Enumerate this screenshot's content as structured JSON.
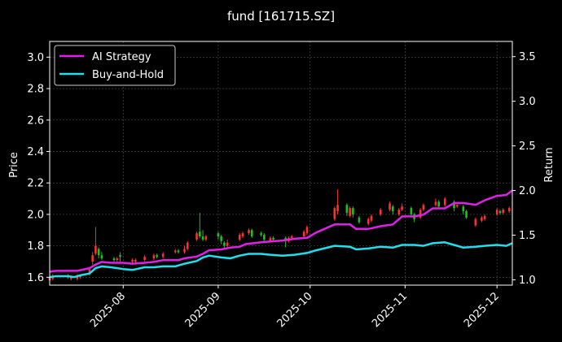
{
  "chart_data": {
    "type": "line",
    "title": "fund [161715.SZ]",
    "xlabel": "",
    "ylabel": "Price",
    "ylabel_right": "Return",
    "ylim": [
      1.55,
      3.1
    ],
    "ylim_right": [
      0.94,
      3.67
    ],
    "xlim": [
      "2025-07-08",
      "2025-12-06"
    ],
    "yticks": [
      1.6,
      1.8,
      2.0,
      2.2,
      2.4,
      2.6,
      2.8,
      3.0
    ],
    "ytick_labels": [
      "1.6",
      "1.8",
      "2.0",
      "2.2",
      "2.4",
      "2.6",
      "2.8",
      "3.0"
    ],
    "yticks_right": [
      1.0,
      1.5,
      2.0,
      2.5,
      3.0,
      3.5
    ],
    "ytick_labels_right": [
      "1.0",
      "1.5",
      "2.0",
      "2.5",
      "3.0",
      "3.5"
    ],
    "xticks": [
      "2025-08-01",
      "2025-09-01",
      "2025-10-01",
      "2025-11-01",
      "2025-12-01"
    ],
    "xtick_labels": [
      "2025-08",
      "2025-09",
      "2025-10",
      "2025-11",
      "2025-12"
    ],
    "grid": true,
    "legend_position": "top-left",
    "series": [
      {
        "name": "AI Strategy",
        "color": "#e020e8",
        "axis": "right",
        "points": [
          [
            "2025-07-08",
            1.09
          ],
          [
            "2025-07-10",
            1.1
          ],
          [
            "2025-07-14",
            1.1
          ],
          [
            "2025-07-17",
            1.1
          ],
          [
            "2025-07-21",
            1.13
          ],
          [
            "2025-07-23",
            1.17
          ],
          [
            "2025-07-25",
            1.2
          ],
          [
            "2025-07-28",
            1.19
          ],
          [
            "2025-08-01",
            1.19
          ],
          [
            "2025-08-04",
            1.18
          ],
          [
            "2025-08-08",
            1.19
          ],
          [
            "2025-08-11",
            1.2
          ],
          [
            "2025-08-14",
            1.22
          ],
          [
            "2025-08-19",
            1.22
          ],
          [
            "2025-08-21",
            1.24
          ],
          [
            "2025-08-25",
            1.26
          ],
          [
            "2025-08-27",
            1.29
          ],
          [
            "2025-08-29",
            1.33
          ],
          [
            "2025-09-02",
            1.34
          ],
          [
            "2025-09-05",
            1.36
          ],
          [
            "2025-09-08",
            1.37
          ],
          [
            "2025-09-10",
            1.4
          ],
          [
            "2025-09-15",
            1.42
          ],
          [
            "2025-09-18",
            1.43
          ],
          [
            "2025-09-22",
            1.44
          ],
          [
            "2025-09-26",
            1.46
          ],
          [
            "2025-09-30",
            1.47
          ],
          [
            "2025-10-03",
            1.53
          ],
          [
            "2025-10-09",
            1.62
          ],
          [
            "2025-10-14",
            1.62
          ],
          [
            "2025-10-16",
            1.57
          ],
          [
            "2025-10-20",
            1.57
          ],
          [
            "2025-10-24",
            1.6
          ],
          [
            "2025-10-28",
            1.62
          ],
          [
            "2025-10-31",
            1.71
          ],
          [
            "2025-11-04",
            1.71
          ],
          [
            "2025-11-07",
            1.73
          ],
          [
            "2025-11-10",
            1.8
          ],
          [
            "2025-11-14",
            1.8
          ],
          [
            "2025-11-17",
            1.86
          ],
          [
            "2025-11-20",
            1.86
          ],
          [
            "2025-11-24",
            1.84
          ],
          [
            "2025-11-27",
            1.89
          ],
          [
            "2025-12-01",
            1.94
          ],
          [
            "2025-12-04",
            1.95
          ],
          [
            "2025-12-06",
            2.0
          ]
        ]
      },
      {
        "name": "Buy-and-Hold",
        "color": "#20e0f0",
        "axis": "right",
        "points": [
          [
            "2025-07-08",
            1.03
          ],
          [
            "2025-07-10",
            1.04
          ],
          [
            "2025-07-14",
            1.04
          ],
          [
            "2025-07-16",
            1.03
          ],
          [
            "2025-07-18",
            1.05
          ],
          [
            "2025-07-21",
            1.07
          ],
          [
            "2025-07-23",
            1.13
          ],
          [
            "2025-07-25",
            1.15
          ],
          [
            "2025-07-28",
            1.14
          ],
          [
            "2025-08-01",
            1.12
          ],
          [
            "2025-08-04",
            1.11
          ],
          [
            "2025-08-08",
            1.14
          ],
          [
            "2025-08-11",
            1.14
          ],
          [
            "2025-08-14",
            1.15
          ],
          [
            "2025-08-18",
            1.15
          ],
          [
            "2025-08-21",
            1.18
          ],
          [
            "2025-08-25",
            1.21
          ],
          [
            "2025-08-27",
            1.25
          ],
          [
            "2025-08-29",
            1.27
          ],
          [
            "2025-09-02",
            1.25
          ],
          [
            "2025-09-05",
            1.24
          ],
          [
            "2025-09-08",
            1.27
          ],
          [
            "2025-09-11",
            1.29
          ],
          [
            "2025-09-15",
            1.29
          ],
          [
            "2025-09-18",
            1.28
          ],
          [
            "2025-09-22",
            1.27
          ],
          [
            "2025-09-26",
            1.28
          ],
          [
            "2025-09-30",
            1.3
          ],
          [
            "2025-10-03",
            1.33
          ],
          [
            "2025-10-09",
            1.38
          ],
          [
            "2025-10-14",
            1.37
          ],
          [
            "2025-10-16",
            1.34
          ],
          [
            "2025-10-20",
            1.35
          ],
          [
            "2025-10-24",
            1.37
          ],
          [
            "2025-10-28",
            1.36
          ],
          [
            "2025-10-31",
            1.39
          ],
          [
            "2025-11-04",
            1.39
          ],
          [
            "2025-11-07",
            1.38
          ],
          [
            "2025-11-10",
            1.41
          ],
          [
            "2025-11-14",
            1.42
          ],
          [
            "2025-11-17",
            1.39
          ],
          [
            "2025-11-20",
            1.36
          ],
          [
            "2025-11-24",
            1.37
          ],
          [
            "2025-11-27",
            1.38
          ],
          [
            "2025-12-01",
            1.39
          ],
          [
            "2025-12-04",
            1.38
          ],
          [
            "2025-12-06",
            1.41
          ]
        ]
      }
    ],
    "candles": {
      "up_color": "#ff3030",
      "down_color": "#20c020",
      "data": [
        [
          "2025-07-08",
          1.58,
          1.6,
          1.56,
          1.61,
          "up"
        ],
        [
          "2025-07-09",
          1.59,
          1.61,
          1.58,
          1.62,
          "up"
        ],
        [
          "2025-07-14",
          1.61,
          1.6,
          1.59,
          1.62,
          "down"
        ],
        [
          "2025-07-15",
          1.59,
          1.6,
          1.58,
          1.61,
          "up"
        ],
        [
          "2025-07-17",
          1.59,
          1.61,
          1.58,
          1.62,
          "up"
        ],
        [
          "2025-07-18",
          1.6,
          1.61,
          1.59,
          1.62,
          "up"
        ],
        [
          "2025-07-21",
          1.62,
          1.65,
          1.61,
          1.66,
          "up"
        ],
        [
          "2025-07-22",
          1.7,
          1.74,
          1.68,
          1.76,
          "up"
        ],
        [
          "2025-07-23",
          1.75,
          1.8,
          1.74,
          1.92,
          "up"
        ],
        [
          "2025-07-24",
          1.78,
          1.74,
          1.72,
          1.79,
          "down"
        ],
        [
          "2025-07-25",
          1.74,
          1.72,
          1.71,
          1.76,
          "down"
        ],
        [
          "2025-07-29",
          1.72,
          1.71,
          1.7,
          1.73,
          "down"
        ],
        [
          "2025-07-30",
          1.71,
          1.72,
          1.7,
          1.73,
          "up"
        ],
        [
          "2025-07-31",
          1.74,
          1.73,
          1.7,
          1.76,
          "down"
        ],
        [
          "2025-08-04",
          1.7,
          1.71,
          1.69,
          1.72,
          "up"
        ],
        [
          "2025-08-05",
          1.7,
          1.71,
          1.69,
          1.72,
          "up"
        ],
        [
          "2025-08-08",
          1.71,
          1.73,
          1.7,
          1.74,
          "up"
        ],
        [
          "2025-08-11",
          1.72,
          1.74,
          1.71,
          1.75,
          "up"
        ],
        [
          "2025-08-12",
          1.74,
          1.73,
          1.72,
          1.75,
          "down"
        ],
        [
          "2025-08-14",
          1.73,
          1.75,
          1.72,
          1.76,
          "up"
        ],
        [
          "2025-08-18",
          1.76,
          1.77,
          1.75,
          1.78,
          "up"
        ],
        [
          "2025-08-19",
          1.77,
          1.76,
          1.75,
          1.78,
          "down"
        ],
        [
          "2025-08-21",
          1.76,
          1.78,
          1.75,
          1.8,
          "up"
        ],
        [
          "2025-08-22",
          1.78,
          1.82,
          1.77,
          1.83,
          "up"
        ],
        [
          "2025-08-25",
          1.84,
          1.88,
          1.83,
          1.89,
          "up"
        ],
        [
          "2025-08-26",
          1.89,
          1.86,
          1.85,
          2.01,
          "down"
        ],
        [
          "2025-08-27",
          1.86,
          1.84,
          1.83,
          1.9,
          "down"
        ],
        [
          "2025-08-28",
          1.84,
          1.86,
          1.83,
          1.87,
          "up"
        ],
        [
          "2025-09-01",
          1.88,
          1.86,
          1.84,
          1.89,
          "down"
        ],
        [
          "2025-09-02",
          1.86,
          1.83,
          1.81,
          1.87,
          "down"
        ],
        [
          "2025-09-03",
          1.82,
          1.8,
          1.78,
          1.83,
          "down"
        ],
        [
          "2025-09-04",
          1.8,
          1.82,
          1.79,
          1.84,
          "up"
        ],
        [
          "2025-09-08",
          1.84,
          1.87,
          1.83,
          1.88,
          "up"
        ],
        [
          "2025-09-09",
          1.86,
          1.88,
          1.85,
          1.89,
          "up"
        ],
        [
          "2025-09-11",
          1.88,
          1.9,
          1.87,
          1.91,
          "up"
        ],
        [
          "2025-09-12",
          1.9,
          1.86,
          1.85,
          1.91,
          "down"
        ],
        [
          "2025-09-15",
          1.88,
          1.87,
          1.86,
          1.89,
          "down"
        ],
        [
          "2025-09-16",
          1.87,
          1.84,
          1.83,
          1.88,
          "down"
        ],
        [
          "2025-09-18",
          1.83,
          1.85,
          1.82,
          1.86,
          "up"
        ],
        [
          "2025-09-19",
          1.85,
          1.84,
          1.83,
          1.86,
          "down"
        ],
        [
          "2025-09-23",
          1.85,
          1.83,
          1.79,
          1.86,
          "down"
        ],
        [
          "2025-09-24",
          1.83,
          1.85,
          1.82,
          1.86,
          "up"
        ],
        [
          "2025-09-25",
          1.85,
          1.86,
          1.84,
          1.87,
          "up"
        ],
        [
          "2025-09-29",
          1.86,
          1.89,
          1.85,
          1.9,
          "up"
        ],
        [
          "2025-09-30",
          1.88,
          1.92,
          1.87,
          1.93,
          "up"
        ],
        [
          "2025-10-09",
          1.97,
          2.04,
          1.96,
          2.05,
          "up"
        ],
        [
          "2025-10-10",
          2.02,
          2.06,
          2.0,
          2.16,
          "up"
        ],
        [
          "2025-10-13",
          2.06,
          2.01,
          1.99,
          2.07,
          "down"
        ],
        [
          "2025-10-14",
          1.99,
          2.04,
          1.98,
          2.05,
          "up"
        ],
        [
          "2025-10-15",
          2.04,
          2.0,
          1.98,
          2.05,
          "down"
        ],
        [
          "2025-10-17",
          1.98,
          1.95,
          1.94,
          1.99,
          "down"
        ],
        [
          "2025-10-20",
          1.94,
          1.97,
          1.93,
          1.98,
          "up"
        ],
        [
          "2025-10-21",
          1.96,
          1.99,
          1.95,
          2.0,
          "up"
        ],
        [
          "2025-10-24",
          2.0,
          2.03,
          1.99,
          2.04,
          "up"
        ],
        [
          "2025-10-27",
          2.03,
          2.07,
          2.02,
          2.08,
          "up"
        ],
        [
          "2025-10-28",
          2.05,
          2.02,
          2.0,
          2.06,
          "down"
        ],
        [
          "2025-10-30",
          2.0,
          2.03,
          1.99,
          2.04,
          "up"
        ],
        [
          "2025-10-31",
          2.03,
          2.05,
          2.02,
          2.07,
          "up"
        ],
        [
          "2025-11-03",
          2.04,
          2.0,
          1.98,
          2.05,
          "down"
        ],
        [
          "2025-11-04",
          2.0,
          1.97,
          1.95,
          2.01,
          "down"
        ],
        [
          "2025-11-06",
          1.98,
          2.03,
          1.97,
          2.04,
          "up"
        ],
        [
          "2025-11-07",
          2.03,
          2.06,
          2.02,
          2.07,
          "up"
        ],
        [
          "2025-11-11",
          2.06,
          2.08,
          2.05,
          2.1,
          "up"
        ],
        [
          "2025-11-12",
          2.08,
          2.05,
          2.04,
          2.09,
          "down"
        ],
        [
          "2025-11-14",
          2.06,
          2.1,
          2.05,
          2.11,
          "up"
        ],
        [
          "2025-11-17",
          2.08,
          2.04,
          2.02,
          2.09,
          "down"
        ],
        [
          "2025-11-18",
          2.05,
          2.06,
          2.04,
          2.07,
          "up"
        ],
        [
          "2025-11-20",
          2.05,
          2.02,
          2.0,
          2.06,
          "down"
        ],
        [
          "2025-11-21",
          2.02,
          1.98,
          1.97,
          2.03,
          "down"
        ],
        [
          "2025-11-24",
          1.93,
          1.97,
          1.92,
          1.98,
          "up"
        ],
        [
          "2025-11-26",
          1.96,
          1.98,
          1.95,
          1.99,
          "up"
        ],
        [
          "2025-11-27",
          1.97,
          1.99,
          1.96,
          2.0,
          "up"
        ],
        [
          "2025-12-01",
          2.0,
          2.03,
          1.99,
          2.04,
          "up"
        ],
        [
          "2025-12-02",
          2.02,
          2.01,
          2.0,
          2.03,
          "down"
        ],
        [
          "2025-12-03",
          2.01,
          2.03,
          2.0,
          2.04,
          "up"
        ],
        [
          "2025-12-05",
          2.02,
          2.04,
          2.01,
          2.05,
          "up"
        ]
      ]
    }
  }
}
